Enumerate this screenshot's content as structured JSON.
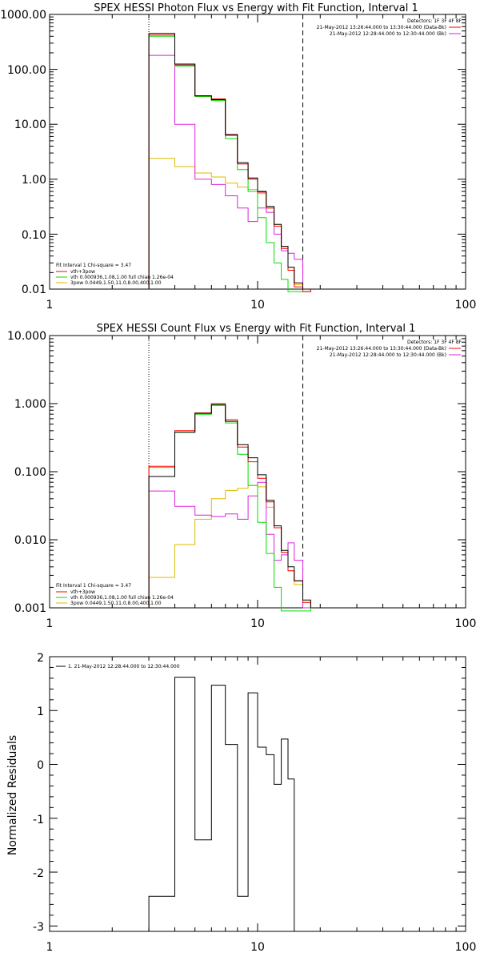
{
  "colors": {
    "data": "#000000",
    "total": "#ff0000",
    "background": "#dd22dd",
    "thermal": "#00dd00",
    "power_law": "#ddbb00",
    "residual": "#000000"
  },
  "chart_data": [
    {
      "type": "line",
      "step": true,
      "title": "SPEX HESSI Photon Flux vs Energy with Fit Function, Interval 1",
      "xlabel": "",
      "ylabel": "",
      "xscale": "log",
      "yscale": "log",
      "xlim": [
        1,
        100
      ],
      "ylim": [
        0.01,
        1000
      ],
      "x_tick_labels": [
        "1",
        "10",
        "100"
      ],
      "y_tick_labels": [
        "0.01",
        "0.10",
        "1.00",
        "10.00",
        "100.00",
        "1000.00"
      ],
      "vlines": [
        {
          "x": 3.0,
          "style": "dotted"
        },
        {
          "x": 16.5,
          "style": "dashed"
        }
      ],
      "annotations": [
        "Detectors: 1F 3F 4F 8F",
        "21-May-2012 13:26:44.000 to 13:30:44.000 (Data-Bk)",
        "21-May-2012 12:28:44.000 to 12:30:44.000 (Bk)",
        "Fit Interval 1    Chi-square = 3.47",
        "vth+3pow",
        "vth 0.000936,1.08,1.00   full chian 1.26e-04",
        "3pow 0.0449,1.50,11.0,8.00,400,1.00"
      ],
      "x_edges": [
        3.0,
        4.0,
        5.0,
        6.0,
        7.0,
        8.0,
        9.0,
        10.0,
        11.0,
        12.0,
        13.0,
        14.0,
        15.0,
        16.5,
        18.0
      ],
      "series": [
        {
          "name": "",
          "color_key": "data",
          "values": [
            450,
            125,
            33,
            28,
            6.5,
            2.0,
            1.05,
            0.6,
            0.32,
            0.15,
            0.06,
            0.025,
            0.013,
            0.01
          ]
        },
        {
          "name": "vth+3pow",
          "color_key": "total",
          "values": [
            420,
            120,
            33,
            29,
            6.3,
            1.9,
            1.0,
            0.58,
            0.3,
            0.14,
            0.055,
            0.022,
            0.011,
            0.009
          ]
        },
        {
          "name": "",
          "color_key": "background",
          "values": [
            180,
            10,
            1.0,
            0.8,
            0.5,
            0.3,
            0.17,
            0.3,
            0.25,
            0.1,
            0.05,
            0.045,
            0.035,
            0.01
          ]
        },
        {
          "name": "vth 0.000936,1.08,1.00   full chian 1.26e-04",
          "color_key": "thermal",
          "values": [
            400,
            115,
            32,
            27,
            5.5,
            1.5,
            0.6,
            0.2,
            0.07,
            0.03,
            0.015,
            0.009,
            0.006,
            0.006
          ]
        },
        {
          "name": "3pow 0.0449,1.50,11.0,8.00,400,1.00",
          "color_key": "power_law",
          "values": [
            2.4,
            1.7,
            1.3,
            1.1,
            0.85,
            0.72,
            0.65,
            0.55,
            0.3,
            0.15,
            0.06,
            0.025,
            0.012,
            0.007
          ]
        }
      ]
    },
    {
      "type": "line",
      "step": true,
      "title": "SPEX HESSI Count Flux vs Energy with Fit Function, Interval 1",
      "xlabel": "",
      "ylabel": "",
      "xscale": "log",
      "yscale": "log",
      "xlim": [
        1,
        100
      ],
      "ylim": [
        0.001,
        10
      ],
      "x_tick_labels": [
        "1",
        "10",
        "100"
      ],
      "y_tick_labels": [
        "0.001",
        "0.010",
        "0.100",
        "1.000",
        "10.000"
      ],
      "vlines": [
        {
          "x": 3.0,
          "style": "dotted"
        },
        {
          "x": 16.5,
          "style": "dashed"
        }
      ],
      "annotations": [
        "Detectors: 1F 3F 4F 8F",
        "21-May-2012 13:26:44.000 to 13:30:44.000 (Data-Bk)",
        "21-May-2012 12:28:44.000 to 12:30:44.000 (Bk)",
        "Fit Interval 1    Chi-square = 3.47",
        "vth+3pow",
        "vth 0.000936,1.08,1.00   full chian 1.26e-04",
        "3pow 0.0449,1.50,11.0,8.00,400,1.00"
      ],
      "x_edges": [
        3.0,
        4.0,
        5.0,
        6.0,
        7.0,
        8.0,
        9.0,
        10.0,
        11.0,
        12.0,
        13.0,
        14.0,
        15.0,
        16.5,
        18.0
      ],
      "series": [
        {
          "name": "",
          "color_key": "data",
          "values": [
            0.085,
            0.38,
            0.72,
            0.95,
            0.55,
            0.25,
            0.16,
            0.09,
            0.038,
            0.016,
            0.007,
            0.004,
            0.0025,
            0.0013
          ]
        },
        {
          "name": "vth+3pow",
          "color_key": "total",
          "values": [
            0.12,
            0.4,
            0.73,
            1.0,
            0.58,
            0.23,
            0.14,
            0.08,
            0.036,
            0.015,
            0.0065,
            0.0035,
            0.0025,
            0.0012
          ]
        },
        {
          "name": "",
          "color_key": "background",
          "values": [
            0.052,
            0.031,
            0.023,
            0.022,
            0.024,
            0.02,
            0.044,
            0.07,
            0.012,
            0.005,
            0.006,
            0.009,
            0.005,
            0.001
          ]
        },
        {
          "name": "vth 0.000936,1.08,1.00   full chian 1.26e-04",
          "color_key": "thermal",
          "values": [
            0.115,
            0.38,
            0.7,
            0.97,
            0.52,
            0.18,
            0.063,
            0.018,
            0.0063,
            0.002,
            0.0009,
            0.0009,
            0.0009,
            0.0009
          ]
        },
        {
          "name": "3pow 0.0449,1.50,11.0,8.00,400,1.00",
          "color_key": "power_law",
          "values": [
            0.0028,
            0.0085,
            0.02,
            0.04,
            0.053,
            0.057,
            0.063,
            0.06,
            0.03,
            0.015,
            0.0065,
            0.0035,
            0.0022,
            0.0012
          ]
        }
      ]
    },
    {
      "type": "line",
      "step": true,
      "title": "",
      "xlabel": "",
      "ylabel": "Normalized Residuals",
      "xscale": "log",
      "yscale": "linear",
      "xlim": [
        1,
        100
      ],
      "ylim": [
        -3.1,
        2.0
      ],
      "x_tick_labels": [
        "1",
        "10",
        "100"
      ],
      "y_tick_labels": [
        "-3",
        "-2",
        "-1",
        "0",
        "1",
        "2"
      ],
      "legend": "1. 21-May-2012 12:28:44.000 to 12:30:44.000",
      "x_edges": [
        3.0,
        4.0,
        5.0,
        6.0,
        7.0,
        8.0,
        9.0,
        10.0,
        11.0,
        12.0,
        13.0,
        14.0,
        15.0,
        16.5,
        18.0
      ],
      "series": [
        {
          "name": "1. 21-May-2012 12:28:44.000 to 12:30:44.000",
          "color_key": "residual",
          "values": [
            -2.45,
            1.62,
            -1.4,
            1.47,
            0.37,
            -2.45,
            1.33,
            0.32,
            0.18,
            -0.37,
            0.47,
            -0.27,
            -3.1,
            -3.1
          ]
        }
      ]
    }
  ]
}
